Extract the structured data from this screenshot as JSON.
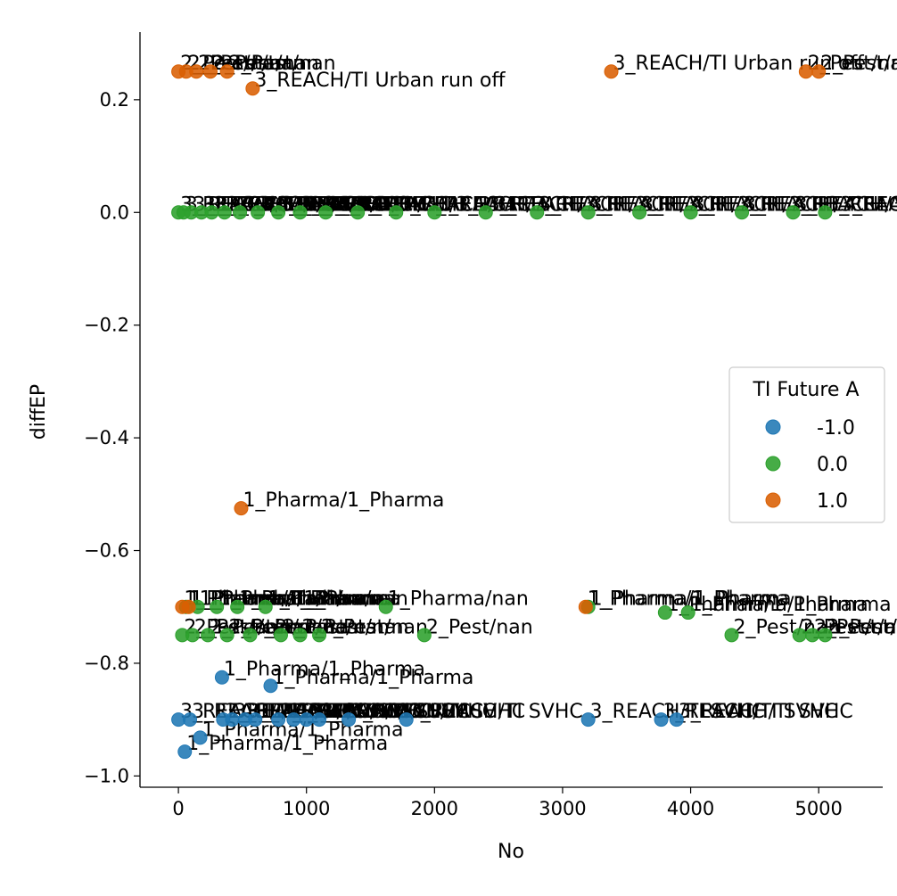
{
  "chart_data": {
    "type": "scatter",
    "title": "",
    "xlabel": "No",
    "ylabel": "diffEP",
    "xlim": [
      -300,
      5500
    ],
    "ylim": [
      -1.02,
      0.32
    ],
    "xticks": [
      0,
      1000,
      2000,
      3000,
      4000,
      5000
    ],
    "yticks": [
      -1.0,
      -0.8,
      -0.6,
      -0.4,
      -0.2,
      0.0,
      0.2
    ],
    "xtick_labels": [
      "0",
      "1000",
      "2000",
      "3000",
      "4000",
      "5000"
    ],
    "ytick_labels": [
      "−1.0",
      "−0.8",
      "−0.6",
      "−0.4",
      "−0.2",
      "0.0",
      "0.2"
    ],
    "grid": false,
    "legend": {
      "title": "TI Future A",
      "placement": "center-right",
      "entries": [
        "-1.0",
        "0.0",
        "1.0"
      ]
    },
    "colors": {
      "-1.0": "#1f77b4",
      "0.0": "#2ca02c",
      "1.0": "#d95f02"
    },
    "series": [
      {
        "name": "-1.0",
        "color": "#1f77b4",
        "points": [
          {
            "x": 0,
            "y": -0.9,
            "label": "3_REACH/TI SVHC"
          },
          {
            "x": 50,
            "y": -0.957,
            "label": "1_Pharma/1_Pharma"
          },
          {
            "x": 90,
            "y": -0.9,
            "label": "3_REACH/TI SVHC"
          },
          {
            "x": 170,
            "y": -0.932,
            "label": "1_Pharma/1_Pharma"
          },
          {
            "x": 340,
            "y": -0.825,
            "label": "1_Pharma/1_Pharma"
          },
          {
            "x": 350,
            "y": -0.9,
            "label": "3_REACH/TI SVHC"
          },
          {
            "x": 420,
            "y": -0.9,
            "label": "3_REACH/TI SVHC"
          },
          {
            "x": 520,
            "y": -0.9,
            "label": "3_REACH/TI SVHC"
          },
          {
            "x": 600,
            "y": -0.9,
            "label": "3_REACH/TI SVHC"
          },
          {
            "x": 720,
            "y": -0.84,
            "label": "1_Pharma/1_Pharma"
          },
          {
            "x": 780,
            "y": -0.9,
            "label": "3_REACH/TI SVHC"
          },
          {
            "x": 900,
            "y": -0.9,
            "label": "3_REACH/TI SVHC"
          },
          {
            "x": 1000,
            "y": -0.9,
            "label": "3_REACH/TI SVHC"
          },
          {
            "x": 1100,
            "y": -0.9,
            "label": "3_REACH/TI SVHC"
          },
          {
            "x": 1330,
            "y": -0.9,
            "label": "3_REACH/TI SVHC"
          },
          {
            "x": 1780,
            "y": -0.9,
            "label": "3_REACH/TI SVHC"
          },
          {
            "x": 3200,
            "y": -0.9,
            "label": "3_REACH/TI SVHC"
          },
          {
            "x": 3770,
            "y": -0.9,
            "label": "3_REACH/TI SVHC"
          },
          {
            "x": 3890,
            "y": -0.9,
            "label": "3_REACH/TI SVHC"
          }
        ]
      },
      {
        "name": "0.0",
        "color": "#2ca02c",
        "points": [
          {
            "x": 0,
            "y": 0.0,
            "label": "3_REACH/3_REACH"
          },
          {
            "x": 40,
            "y": 0.0,
            "label": "3_REACH/3_REACH"
          },
          {
            "x": 100,
            "y": 0.0,
            "label": "3_REACH/3_REACH"
          },
          {
            "x": 180,
            "y": 0.0,
            "label": "3_REACH/3_REACH"
          },
          {
            "x": 260,
            "y": 0.0,
            "label": "3_REACH/3_REACH"
          },
          {
            "x": 360,
            "y": 0.0,
            "label": "3_REACH/3_REACH"
          },
          {
            "x": 480,
            "y": 0.0,
            "label": "3_REACH/3_REACH"
          },
          {
            "x": 620,
            "y": 0.0,
            "label": "3_REACH/3_REACH"
          },
          {
            "x": 780,
            "y": 0.0,
            "label": "3_REACH/3_REACH"
          },
          {
            "x": 950,
            "y": 0.0,
            "label": "3_REACH/3_REACH"
          },
          {
            "x": 1150,
            "y": 0.0,
            "label": "3_REACH/3_REACH"
          },
          {
            "x": 1400,
            "y": 0.0,
            "label": "3_REACH/3_REACH"
          },
          {
            "x": 1700,
            "y": 0.0,
            "label": "3_REACH/3_REACH"
          },
          {
            "x": 2000,
            "y": 0.0,
            "label": "3_REACH/3_REACH"
          },
          {
            "x": 2400,
            "y": 0.0,
            "label": "3_REACH/3_REACH"
          },
          {
            "x": 2800,
            "y": 0.0,
            "label": "3_REACH/3_REACH"
          },
          {
            "x": 3200,
            "y": 0.0,
            "label": "3_REACH/3_REACH"
          },
          {
            "x": 3600,
            "y": 0.0,
            "label": "3_REACH/3_REACH"
          },
          {
            "x": 4000,
            "y": 0.0,
            "label": "3_REACH/3_REACH"
          },
          {
            "x": 4400,
            "y": 0.0,
            "label": "3_REACH/3_REACH"
          },
          {
            "x": 4800,
            "y": 0.0,
            "label": "3_REACH/3_REACH"
          },
          {
            "x": 5050,
            "y": 0.0,
            "label": "3_REACH/3_REACH"
          },
          {
            "x": 30,
            "y": -0.75,
            "label": "2_Pest/nan"
          },
          {
            "x": 60,
            "y": -0.7,
            "label": "1_Pharma/1_Pharma"
          },
          {
            "x": 110,
            "y": -0.75,
            "label": "2_Pest/nan"
          },
          {
            "x": 150,
            "y": -0.7,
            "label": "1_Pharma/1_Pharma"
          },
          {
            "x": 230,
            "y": -0.75,
            "label": "2_Pest/nan"
          },
          {
            "x": 300,
            "y": -0.7,
            "label": "1_Pharma/nan"
          },
          {
            "x": 380,
            "y": -0.75,
            "label": "2_Pest/nan"
          },
          {
            "x": 460,
            "y": -0.7,
            "label": "1_Pharma/nan"
          },
          {
            "x": 560,
            "y": -0.75,
            "label": "2_Pest/nan"
          },
          {
            "x": 680,
            "y": -0.7,
            "label": "1_Pharma/nan"
          },
          {
            "x": 800,
            "y": -0.75,
            "label": "2_Pest/nan"
          },
          {
            "x": 950,
            "y": -0.75,
            "label": "2_Pest/nan"
          },
          {
            "x": 1100,
            "y": -0.75,
            "label": "2_Pest/nan"
          },
          {
            "x": 1620,
            "y": -0.7,
            "label": "1_Pharma/nan"
          },
          {
            "x": 1920,
            "y": -0.75,
            "label": "2_Pest/nan"
          },
          {
            "x": 3200,
            "y": -0.7,
            "label": "1_Pharma/1_Pharma"
          },
          {
            "x": 3800,
            "y": -0.71,
            "label": "1_Pharma/1_Pharma"
          },
          {
            "x": 3980,
            "y": -0.71,
            "label": "1_Pharma/1_Pharma"
          },
          {
            "x": 4320,
            "y": -0.75,
            "label": "2_Pest/nan"
          },
          {
            "x": 4850,
            "y": -0.75,
            "label": "2_Pest/nan"
          },
          {
            "x": 4950,
            "y": -0.75,
            "label": "2_Pest/nan"
          },
          {
            "x": 5050,
            "y": -0.75,
            "label": "2_Pest/nan"
          }
        ]
      },
      {
        "name": "1.0",
        "color": "#d95f02",
        "points": [
          {
            "x": 0,
            "y": 0.25,
            "label": "2_Pest/nan"
          },
          {
            "x": 60,
            "y": 0.25,
            "label": "2_Pest/nan"
          },
          {
            "x": 140,
            "y": 0.25,
            "label": "2_Pest/nan"
          },
          {
            "x": 250,
            "y": 0.25,
            "label": "2_Pest/nan"
          },
          {
            "x": 380,
            "y": 0.25,
            "label": "2_Pest/nan"
          },
          {
            "x": 580,
            "y": 0.22,
            "label": "3_REACH/TI Urban run off"
          },
          {
            "x": 3380,
            "y": 0.25,
            "label": "3_REACH/TI Urban run off"
          },
          {
            "x": 4900,
            "y": 0.25,
            "label": "2_Pest/nan"
          },
          {
            "x": 5000,
            "y": 0.25,
            "label": "2_Pest/nan"
          },
          {
            "x": 490,
            "y": -0.525,
            "label": "1_Pharma/1_Pharma"
          },
          {
            "x": 30,
            "y": -0.7,
            "label": "1_Pharma/1_Pharma"
          },
          {
            "x": 80,
            "y": -0.7,
            "label": "1_Pharma/1_Pharma"
          },
          {
            "x": 3180,
            "y": -0.7,
            "label": "1_Pharma/1_Pharma"
          }
        ]
      }
    ]
  }
}
